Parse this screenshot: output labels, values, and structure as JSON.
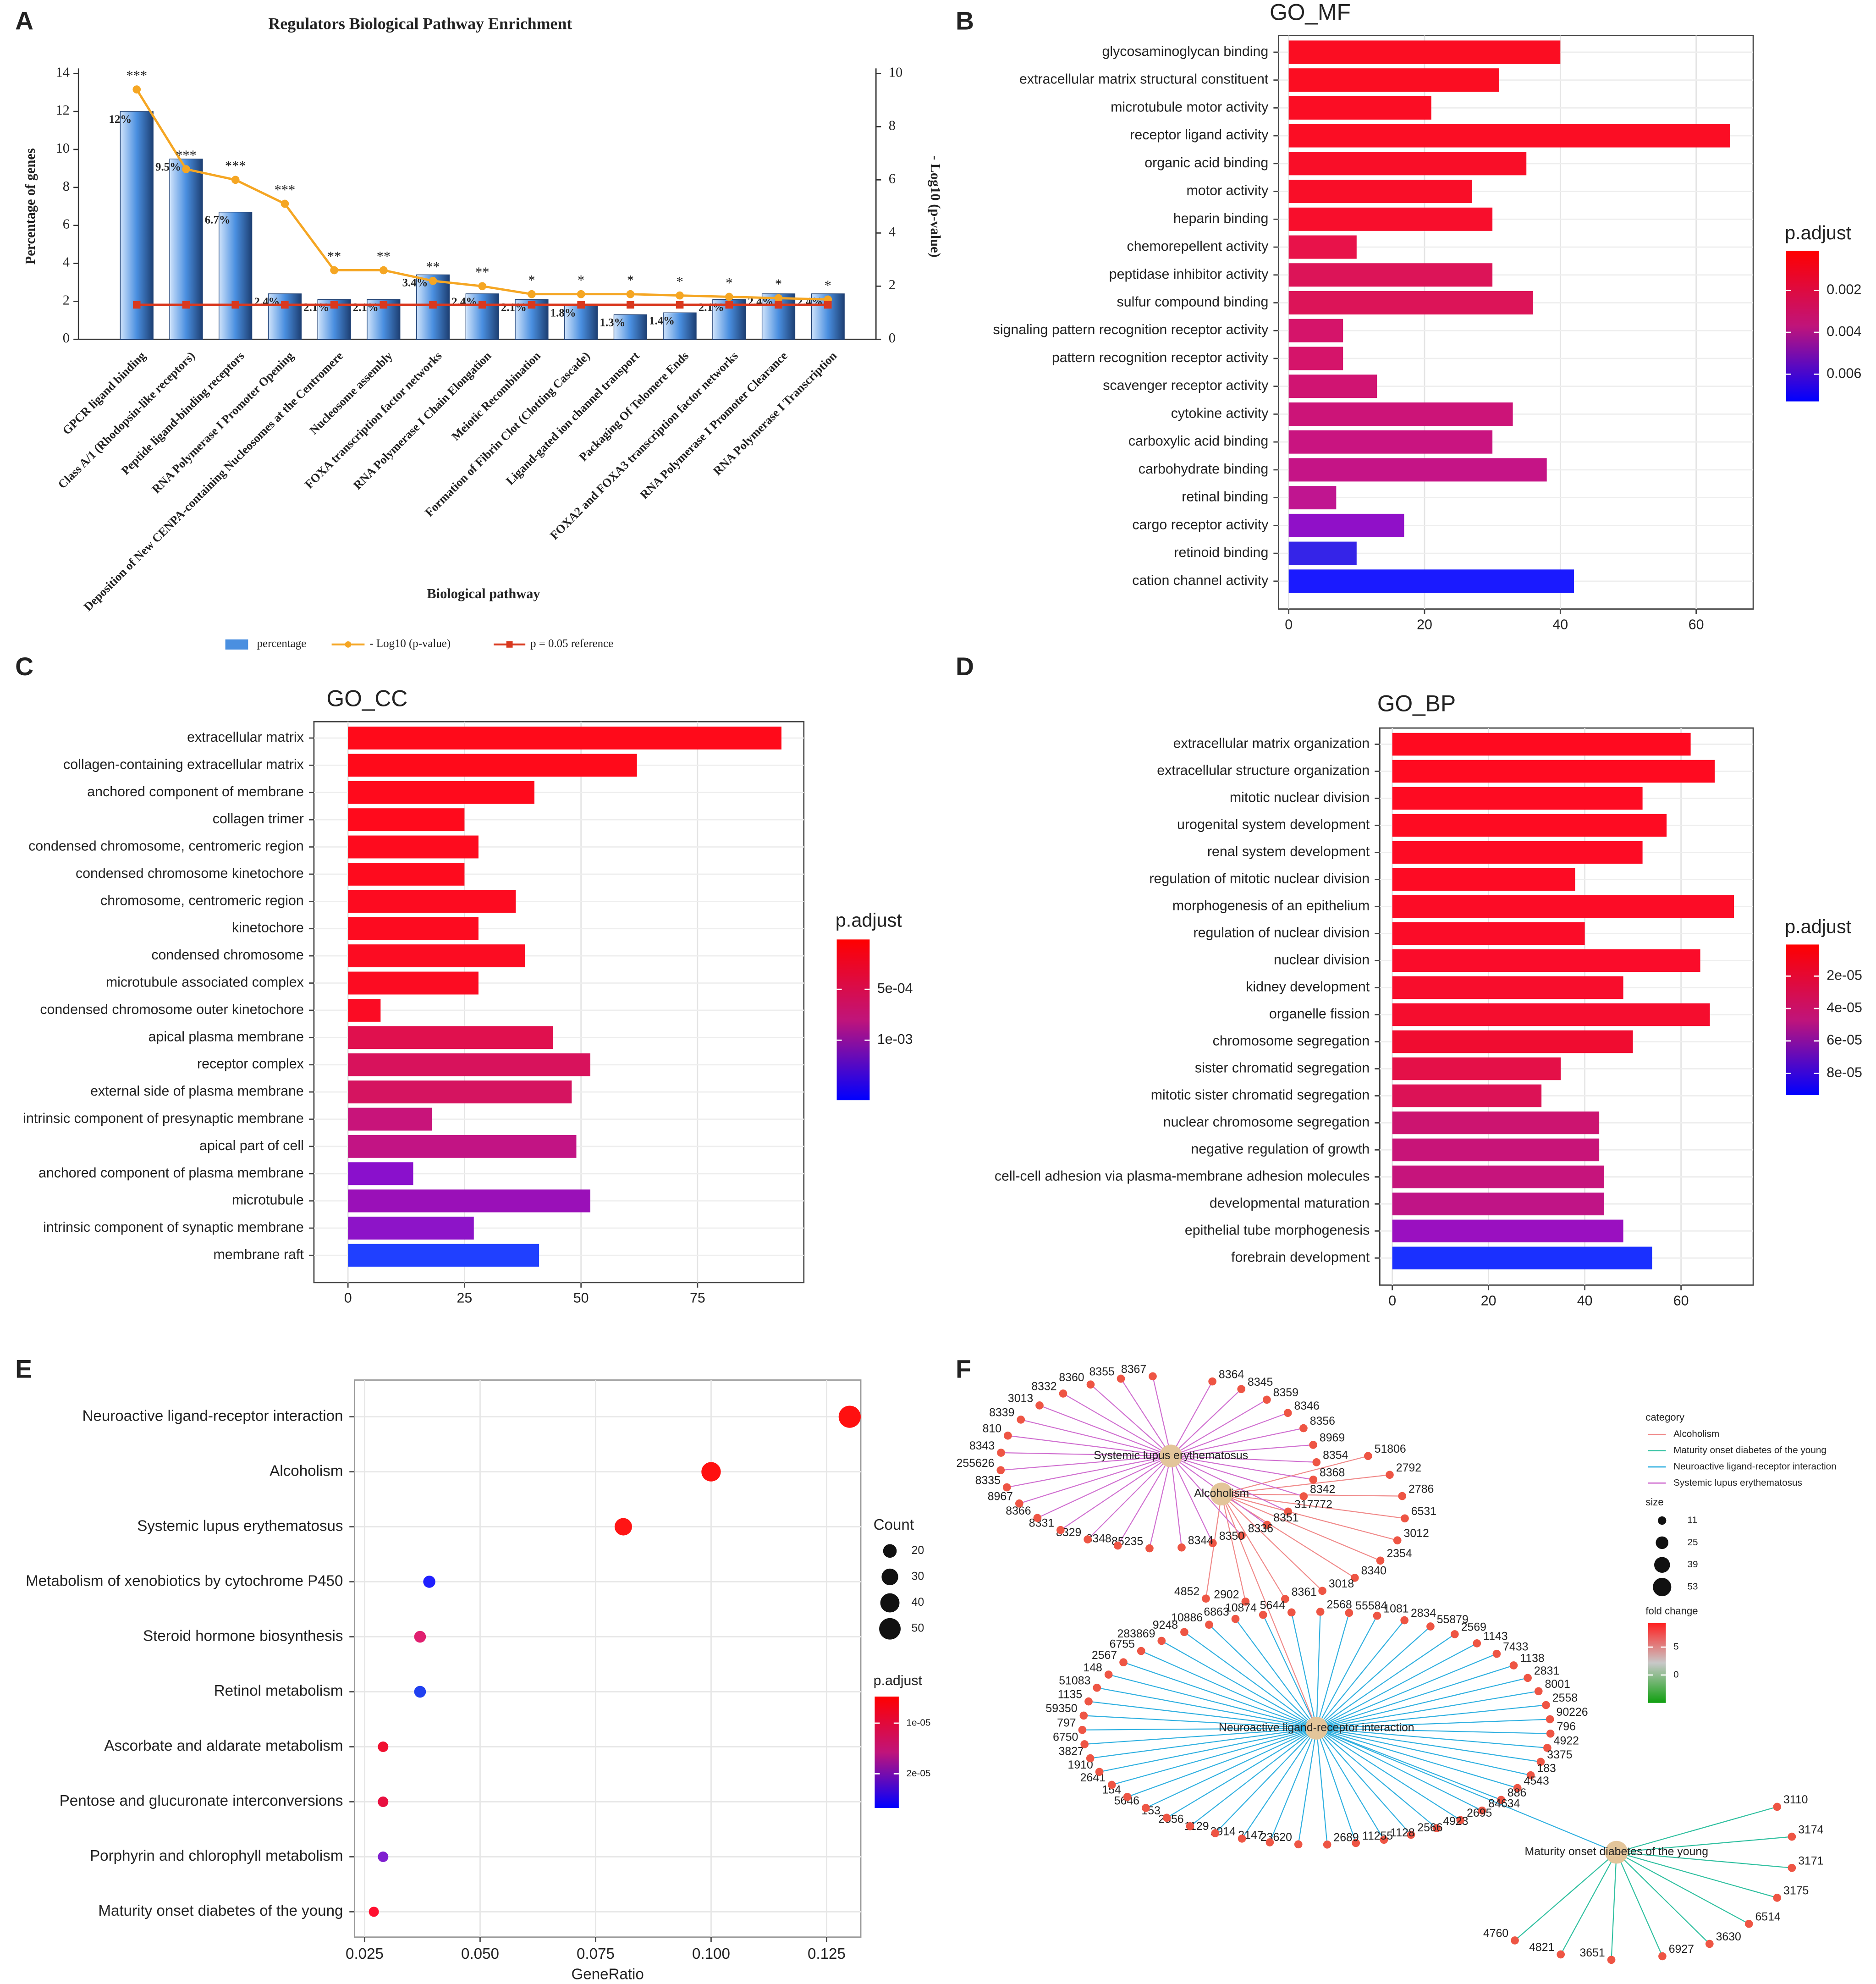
{
  "chart_data": [
    {
      "type": "bar",
      "panel": "A",
      "title": "Regulators Biological Pathway Enrichment",
      "xlabel": "Biological pathway",
      "ylabel": "Percentage of genes",
      "y2label": "- Log10 (p-value)",
      "categories": [
        "GPCR ligand binding",
        "Class A/1 (Rhodopsin-like receptors)",
        "Peptide ligand-binding receptors",
        "RNA Polymerase I Promoter Opening",
        "Deposition of New CENPA-containing Nucleosomes at the Centromere",
        "Nucleosome assembly",
        "FOXA transcription factor networks",
        "RNA Polymerase I Chain Elongation",
        "Meiotic Recombination",
        "Formation of Fibrin Clot (Clotting Cascade)",
        "Ligand-gated ion channel transport",
        "Packaging Of Telomere Ends",
        "FOXA2 and FOXA3 transcription factor networks",
        "RNA Polymerase I Promoter Clearance",
        "RNA Polymerase I Transcription"
      ],
      "series": [
        {
          "name": "percentage",
          "type": "bar",
          "color": "#4a8fe0",
          "values": [
            12,
            9.5,
            6.7,
            2.4,
            2.1,
            2.1,
            3.4,
            2.4,
            2.1,
            1.8,
            1.3,
            1.4,
            2.1,
            2.4,
            2.4
          ],
          "value_labels": [
            "12%",
            "9.5%",
            "6.7%",
            "2.4%",
            "2.1%",
            "2.1%",
            "3.4%",
            "2.4%",
            "2.1%",
            "1.8%",
            "1.3%",
            "1.4%",
            "2.1%",
            "2.4%",
            "2.4%"
          ]
        },
        {
          "name": "- Log10 (p-value)",
          "type": "line",
          "axis": "y2",
          "color": "#f5a623",
          "values": [
            9.4,
            6.4,
            6.0,
            5.1,
            2.6,
            2.6,
            2.2,
            2.0,
            1.7,
            1.7,
            1.7,
            1.65,
            1.6,
            1.55,
            1.5
          ],
          "significance": [
            "***",
            "***",
            "***",
            "***",
            "**",
            "**",
            "**",
            "**",
            "*",
            "*",
            "*",
            "*",
            "*",
            "*",
            "*"
          ]
        },
        {
          "name": "p = 0.05 reference",
          "type": "line",
          "axis": "y2",
          "color": "#d9381e",
          "values": [
            1.3,
            1.3,
            1.3,
            1.3,
            1.3,
            1.3,
            1.3,
            1.3,
            1.3,
            1.3,
            1.3,
            1.3,
            1.3,
            1.3,
            1.3
          ]
        }
      ],
      "ylim": [
        0,
        14
      ],
      "yticks": [
        0,
        2,
        4,
        6,
        8,
        10,
        12,
        14
      ],
      "y2lim": [
        0,
        10
      ],
      "y2ticks": [
        0,
        2,
        4,
        6,
        8,
        10
      ]
    },
    {
      "type": "hbar",
      "panel": "B",
      "title": "GO_MF",
      "categories": [
        "glycosaminoglycan binding",
        "extracellular matrix structural constituent",
        "microtubule motor activity",
        "receptor ligand activity",
        "organic acid binding",
        "motor activity",
        "heparin binding",
        "chemorepellent activity",
        "peptidase inhibitor activity",
        "sulfur compound binding",
        "signaling pattern recognition receptor activity",
        "pattern recognition receptor activity",
        "scavenger receptor activity",
        "cytokine activity",
        "carboxylic acid binding",
        "carbohydrate binding",
        "retinal binding",
        "cargo receptor activity",
        "retinoid binding",
        "cation channel activity"
      ],
      "values": [
        40,
        31,
        21,
        65,
        35,
        27,
        30,
        10,
        30,
        36,
        8,
        8,
        13,
        33,
        30,
        38,
        7,
        17,
        10,
        42
      ],
      "colors": [
        "#fb0d22",
        "#fb0d22",
        "#fb0d24",
        "#fb0d24",
        "#f90e28",
        "#f90e28",
        "#f80e2c",
        "#e8124a",
        "#dc1458",
        "#dc1458",
        "#d5146a",
        "#d5146a",
        "#d01472",
        "#cc1478",
        "#c91480",
        "#c51486",
        "#c01590",
        "#9010c8",
        "#3524e8",
        "#1a1aff"
      ],
      "xlim": [
        -1.5,
        68.4
      ],
      "xticks": [
        0,
        20,
        40,
        60
      ],
      "colorbar": {
        "title": "p.adjust",
        "lim": [
          0.0001,
          0.0073
        ],
        "ticks": [
          0.002,
          0.004,
          0.006
        ],
        "colors": [
          "#ff0000",
          "#c0147a",
          "#0000ff"
        ]
      }
    },
    {
      "type": "hbar",
      "panel": "C",
      "title": "GO_CC",
      "categories": [
        "extracellular matrix",
        "collagen-containing extracellular matrix",
        "anchored component of membrane",
        "collagen trimer",
        "condensed chromosome, centromeric region",
        "condensed chromosome kinetochore",
        "chromosome, centromeric region",
        "kinetochore",
        "condensed chromosome",
        "microtubule associated complex",
        "condensed chromosome outer kinetochore",
        "apical plasma membrane",
        "receptor complex",
        "external side of plasma membrane",
        "intrinsic component of presynaptic membrane",
        "apical part of cell",
        "anchored component of plasma membrane",
        "microtubule",
        "intrinsic component of synaptic membrane",
        "membrane raft"
      ],
      "values": [
        93,
        62,
        40,
        25,
        28,
        25,
        36,
        28,
        38,
        28,
        7,
        44,
        52,
        48,
        18,
        49,
        14,
        52,
        27,
        41
      ],
      "colors": [
        "#ff0a1a",
        "#ff0a1a",
        "#ff0a1c",
        "#ff0a1c",
        "#fe0b1e",
        "#fe0b1e",
        "#fd0b20",
        "#fd0b20",
        "#fc0c22",
        "#fc0c22",
        "#fb0c24",
        "#e0104e",
        "#d8125c",
        "#d51460",
        "#c8147a",
        "#c21484",
        "#8a10cc",
        "#9a10b8",
        "#8d14c8",
        "#2040ff"
      ],
      "xlim": [
        -7.3,
        97.8
      ],
      "xticks": [
        0,
        25,
        50,
        75
      ],
      "colorbar": {
        "title": "p.adjust",
        "lim": [
          1e-05,
          0.00159
        ],
        "ticks": [
          {
            "value": 0.0005,
            "label": "5e-04"
          },
          {
            "value": 0.001,
            "label": "1e-03"
          }
        ],
        "colors": [
          "#ff0000",
          "#c0147a",
          "#0000ff"
        ]
      }
    },
    {
      "type": "hbar",
      "panel": "D",
      "title": "GO_BP",
      "categories": [
        "extracellular matrix organization",
        "extracellular structure organization",
        "mitotic nuclear division",
        "urogenital system development",
        "renal system development",
        "regulation of mitotic nuclear division",
        "morphogenesis of an epithelium",
        "regulation of nuclear division",
        "nuclear division",
        "kidney development",
        "organelle fission",
        "chromosome segregation",
        "sister chromatid segregation",
        "mitotic sister chromatid segregation",
        "nuclear chromosome segregation",
        "negative regulation of growth",
        "cell-cell adhesion via plasma-membrane adhesion molecules",
        "developmental maturation",
        "epithelial tube morphogenesis",
        "forebrain development"
      ],
      "values": [
        62,
        67,
        52,
        57,
        52,
        38,
        71,
        40,
        64,
        48,
        66,
        50,
        35,
        31,
        43,
        43,
        44,
        44,
        48,
        54
      ],
      "colors": [
        "#ff0a20",
        "#ff0a20",
        "#fe0b22",
        "#fe0b22",
        "#fd0b24",
        "#fd0b24",
        "#fc0c26",
        "#fb0c28",
        "#fa0c2a",
        "#f80d2c",
        "#f50d2e",
        "#f00c30",
        "#e41048",
        "#dc1256",
        "#cc1470",
        "#c81478",
        "#c6147c",
        "#c01486",
        "#9a10c0",
        "#1a30ff"
      ],
      "xlim": [
        -2.6,
        75
      ],
      "xticks": [
        0,
        20,
        40,
        60
      ],
      "colorbar": {
        "title": "p.adjust",
        "lim": [
          5e-07,
          9.35e-05
        ],
        "ticks": [
          {
            "value": 2e-05,
            "label": "2e-05"
          },
          {
            "value": 4e-05,
            "label": "4e-05"
          },
          {
            "value": 6e-05,
            "label": "6e-05"
          },
          {
            "value": 8e-05,
            "label": "8e-05"
          }
        ],
        "colors": [
          "#ff0000",
          "#c0147a",
          "#0000ff"
        ]
      }
    },
    {
      "type": "dot",
      "panel": "E",
      "xlabel": "GeneRatio",
      "categories": [
        "Neuroactive ligand-receptor interaction",
        "Alcoholism",
        "Systemic lupus erythematosus",
        "Metabolism of xenobiotics by cytochrome P450",
        "Steroid hormone biosynthesis",
        "Retinol metabolism",
        "Ascorbate and aldarate metabolism",
        "Pentose and glucuronate interconversions",
        "Porphyrin and chlorophyll metabolism",
        "Maturity onset diabetes of the young"
      ],
      "x": [
        0.13,
        0.1,
        0.081,
        0.039,
        0.037,
        0.037,
        0.029,
        0.029,
        0.029,
        0.027
      ],
      "sizes": [
        53,
        41,
        33,
        16,
        15,
        15,
        12,
        12,
        12,
        11
      ],
      "colors": [
        "#ff1010",
        "#ff1010",
        "#ff1414",
        "#2020ff",
        "#e02070",
        "#2040f0",
        "#f01030",
        "#e81040",
        "#8020d0",
        "#ff1030"
      ],
      "xlim": [
        0.0228,
        0.1324
      ],
      "xticks": [
        0.025,
        {
          "value": 0.05,
          "label": "0.050"
        },
        0.075,
        {
          "value": 0.1,
          "label": "0.100"
        },
        0.125
      ],
      "size_title": "Count",
      "size_ticks": [
        20,
        30,
        40,
        50
      ],
      "colorbar": {
        "title": "p.adjust",
        "lim": [
          4.75e-06,
          2.675e-05
        ],
        "ticks": [
          {
            "value": 1e-05,
            "label": "1e-05"
          },
          {
            "value": 2e-05,
            "label": "2e-05"
          }
        ],
        "colors": [
          "#ff0000",
          "#c0147a",
          "#0000ff"
        ]
      }
    },
    {
      "type": "network",
      "panel": "F",
      "legend_title": "category",
      "categories": [
        {
          "name": "Alcoholism",
          "color": "#f08a8a",
          "genes": [
            "51806",
            "2792",
            "2786",
            "6531",
            "3012",
            "2354",
            "8340",
            "3018",
            "8361",
            "2902",
            "4852"
          ]
        },
        {
          "name": "Maturity onset diabetes of the young",
          "color": "#30c0a0",
          "genes": [
            "3110",
            "3174",
            "3171",
            "3175",
            "6514",
            "3630",
            "6927",
            "3651",
            "4821",
            "4760"
          ]
        },
        {
          "name": "Neuroactive ligand-receptor interaction",
          "color": "#30b0e0",
          "genes": [
            "1081",
            "2834",
            "55879",
            "2569",
            "1143",
            "7433",
            "1138",
            "2831",
            "8001",
            "2558",
            "90226",
            "796",
            "4922",
            "3375",
            "183",
            "4543",
            "886",
            "84634",
            "2695",
            "4923",
            "2566",
            "1128",
            "11255",
            "2689",
            "23620",
            "2147",
            "2914",
            "1129",
            "2556",
            "153",
            "5646",
            "154",
            "2641",
            "1910",
            "3827",
            "6750",
            "797",
            "59350",
            "1135",
            "51083",
            "148",
            "2567",
            "6755",
            "283869",
            "9248",
            "10886",
            "6863",
            "10874",
            "5644",
            "2568",
            "55584"
          ]
        },
        {
          "name": "Systemic lupus erythematosus",
          "color": "#d070d0",
          "genes": [
            "8364",
            "8345",
            "8359",
            "8346",
            "8356",
            "8969",
            "8354",
            "8368",
            "8342",
            "317772",
            "8351",
            "8336",
            "8350",
            "8344",
            "85235",
            "8348",
            "8329",
            "8331",
            "8366",
            "8967",
            "8335",
            "255626",
            "8343",
            "810",
            "8339",
            "3013",
            "8332",
            "8360",
            "8355",
            "8367"
          ]
        }
      ],
      "size_title": "size",
      "size_ticks": [
        11,
        25,
        39,
        53
      ],
      "color_title": "fold change",
      "colorbar": {
        "lim": [
          9.3,
          -5
        ],
        "ticks": [
          5,
          0
        ],
        "colors": [
          "#ff2020",
          "#c8c8c8",
          "#10a010"
        ]
      }
    }
  ]
}
